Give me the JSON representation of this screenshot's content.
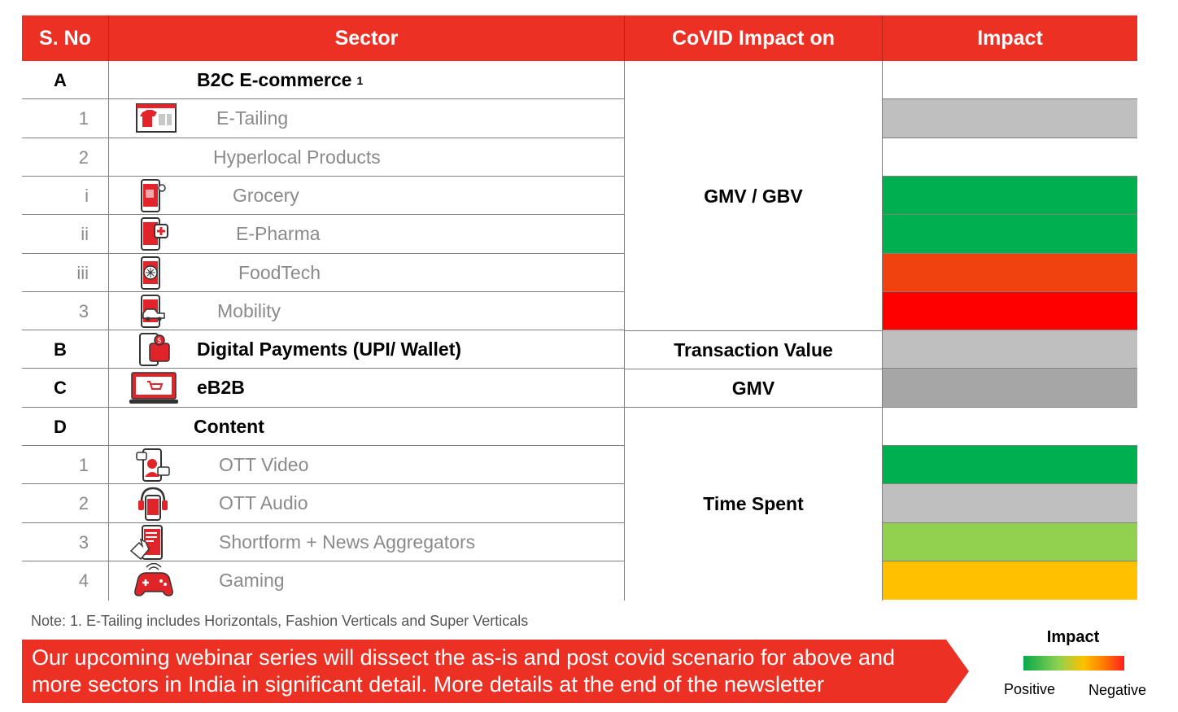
{
  "headers": {
    "sno": "S. No",
    "sector": "Sector",
    "covid": "CoVID Impact on",
    "impact": "Impact"
  },
  "rows": [
    {
      "sno": "A",
      "label": "B2C E-commerce",
      "sup": "1",
      "level": "major",
      "icon": ""
    },
    {
      "sno": "1",
      "label": "E-Tailing",
      "level": "minor",
      "icon": "shirt-laptop-icon",
      "impact_color": "#bfbfbf"
    },
    {
      "sno": "2",
      "label": "Hyperlocal Products",
      "level": "minor",
      "icon": ""
    },
    {
      "sno": "i",
      "label": "Grocery",
      "level": "minor",
      "icon": "grocery-phone-icon",
      "impact_color": "#00b050"
    },
    {
      "sno": "ii",
      "label": "E-Pharma",
      "level": "minor",
      "icon": "pharma-phone-icon",
      "impact_color": "#00b050"
    },
    {
      "sno": "iii",
      "label": "FoodTech",
      "level": "minor",
      "icon": "food-phone-icon",
      "impact_color": "#f0420f"
    },
    {
      "sno": "3",
      "label": "Mobility",
      "level": "minor",
      "icon": "car-phone-icon",
      "impact_color": "#ff0000"
    },
    {
      "sno": "B",
      "label": "Digital Payments (UPI/ Wallet)",
      "level": "major",
      "icon": "wallet-phone-icon",
      "impact_color": "#bfbfbf"
    },
    {
      "sno": "C",
      "label": "eB2B",
      "level": "major",
      "icon": "cart-laptop-icon",
      "impact_color": "#a6a6a6"
    },
    {
      "sno": "D",
      "label": "Content",
      "level": "major",
      "icon": ""
    },
    {
      "sno": "1",
      "label": "OTT Video",
      "level": "minor",
      "icon": "video-phone-icon",
      "impact_color": "#00b050"
    },
    {
      "sno": "2",
      "label": "OTT Audio",
      "level": "minor",
      "icon": "headphones-phone-icon",
      "impact_color": "#bfbfbf"
    },
    {
      "sno": "3",
      "label": "Shortform + News Aggregators",
      "level": "minor",
      "icon": "touch-phone-icon",
      "impact_color": "#92d050"
    },
    {
      "sno": "4",
      "label": "Gaming",
      "level": "minor",
      "icon": "gamepad-icon",
      "impact_color": "#ffc000"
    }
  ],
  "impact_groups": [
    {
      "label": "GMV / GBV"
    },
    {
      "label": "Transaction Value"
    },
    {
      "label": "GMV"
    },
    {
      "label": "Time Spent"
    }
  ],
  "note": "Note: 1. E-Tailing includes Horizontals, Fashion Verticals and Super Verticals",
  "banner": {
    "text": "Our upcoming webinar series will dissect the as-is and post covid scenario for above and more sectors in India in significant detail. More details at the end of the newsletter",
    "color": "#ed3024"
  },
  "legend": {
    "title": "Impact",
    "positive": "Positive",
    "negative": "Negative"
  }
}
